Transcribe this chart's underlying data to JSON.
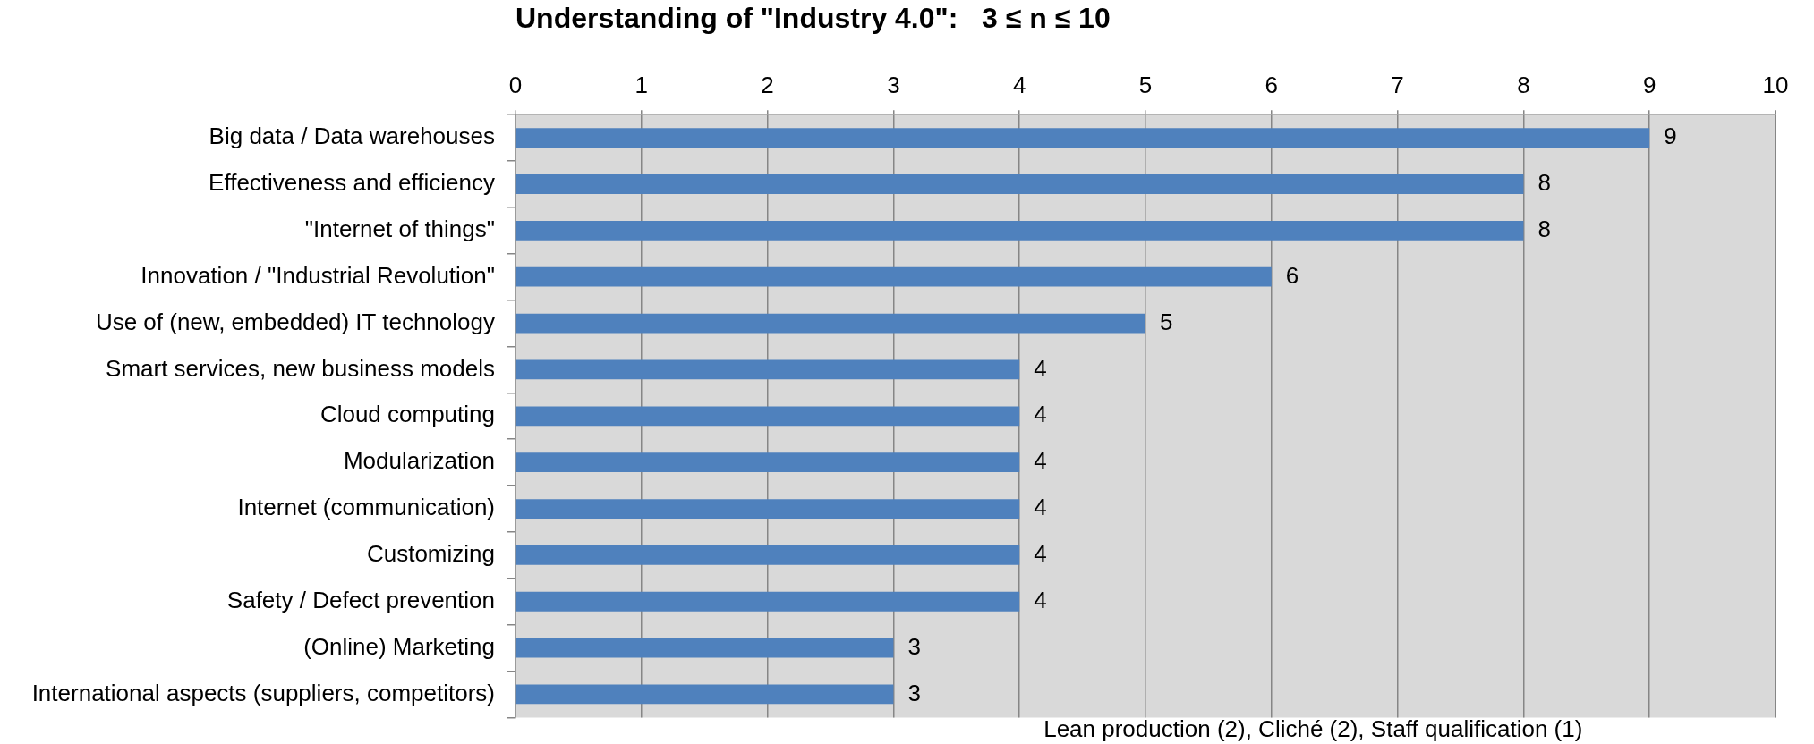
{
  "chart_data": {
    "type": "bar",
    "orientation": "horizontal",
    "title": "Understanding of \"Industry 4.0\":   3 ≤ n ≤ 10",
    "categories": [
      "Big data / Data warehouses",
      "Effectiveness and efficiency",
      "\"Internet of things\"",
      "Innovation / \"Industrial Revolution\"",
      "Use of (new, embedded) IT technology",
      "Smart services, new business models",
      "Cloud computing",
      "Modularization",
      "Internet (communication)",
      "Customizing",
      "Safety / Defect prevention",
      "(Online) Marketing",
      "International aspects (suppliers, competitors)"
    ],
    "values": [
      9,
      8,
      8,
      6,
      5,
      4,
      4,
      4,
      4,
      4,
      4,
      3,
      3
    ],
    "color": "#4f81bd",
    "xlim": [
      0,
      10
    ],
    "xticks": [
      0,
      1,
      2,
      3,
      4,
      5,
      6,
      7,
      8,
      9,
      10
    ],
    "grid": "x",
    "data_labels": true,
    "annotations": [
      "Lean production (2), Cliché (2), Staff qualification (1)"
    ]
  }
}
